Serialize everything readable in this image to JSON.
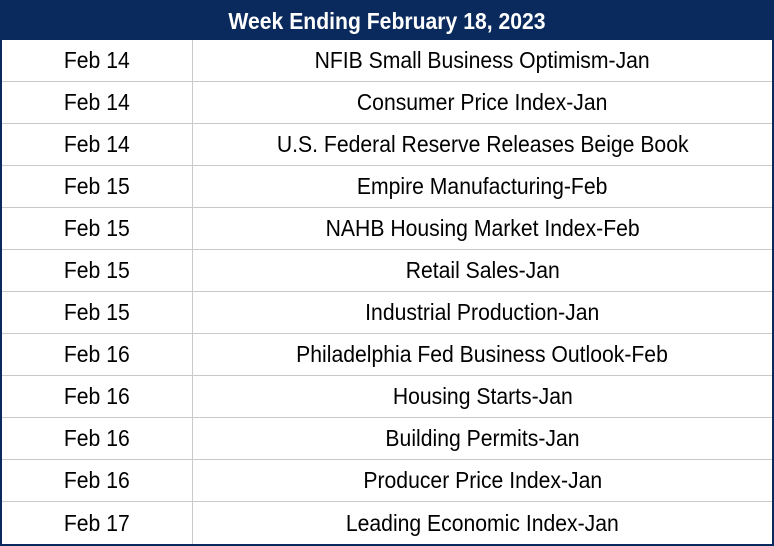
{
  "title": "Week Ending February 18, 2023",
  "colors": {
    "header_background": "#0a2a5e",
    "header_text": "#ffffff",
    "grid_line": "#c9c9c9"
  },
  "rows": [
    {
      "date": "Feb 14",
      "event": "NFIB Small Business Optimism-Jan"
    },
    {
      "date": "Feb 14",
      "event": "Consumer Price Index-Jan"
    },
    {
      "date": "Feb 14",
      "event": "U.S. Federal Reserve Releases Beige Book"
    },
    {
      "date": "Feb 15",
      "event": "Empire Manufacturing-Feb"
    },
    {
      "date": "Feb 15",
      "event": "NAHB Housing Market Index-Feb"
    },
    {
      "date": "Feb 15",
      "event": "Retail Sales-Jan"
    },
    {
      "date": "Feb 15",
      "event": "Industrial Production-Jan"
    },
    {
      "date": "Feb 16",
      "event": "Philadelphia Fed Business Outlook-Feb"
    },
    {
      "date": "Feb 16",
      "event": "Housing Starts-Jan"
    },
    {
      "date": "Feb 16",
      "event": "Building Permits-Jan"
    },
    {
      "date": "Feb 16",
      "event": "Producer Price Index-Jan"
    },
    {
      "date": "Feb 17",
      "event": "Leading Economic Index-Jan"
    }
  ]
}
